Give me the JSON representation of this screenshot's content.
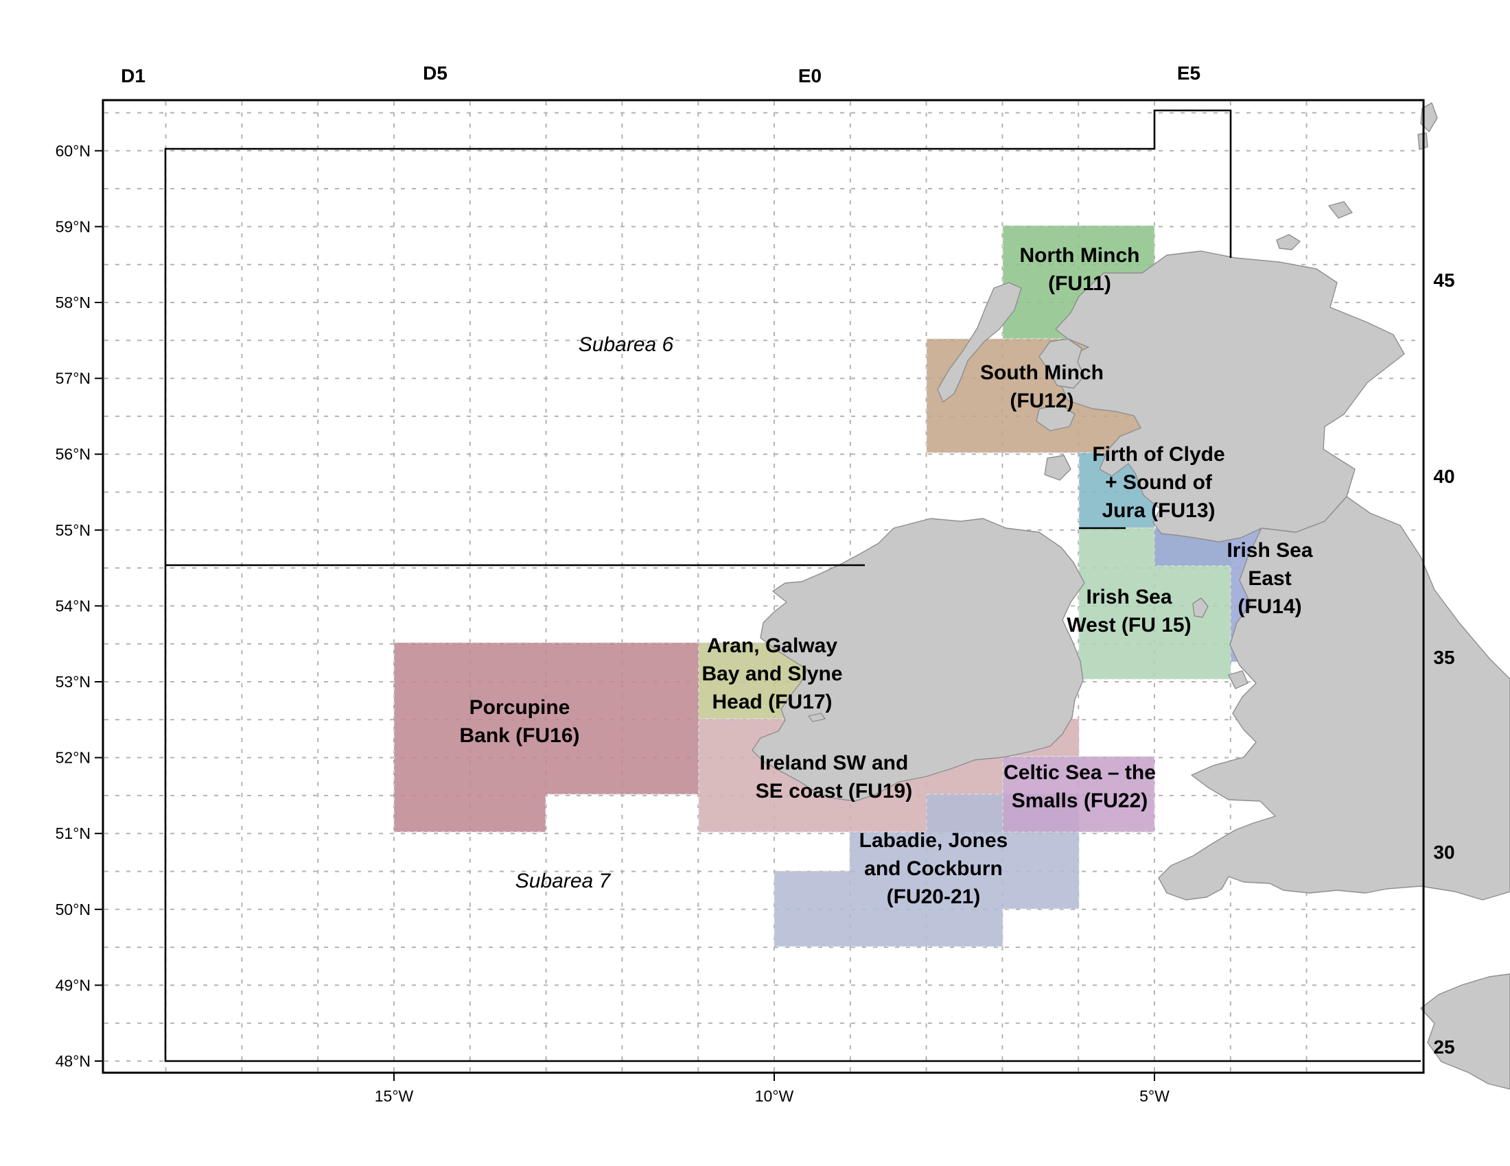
{
  "map": {
    "top_rect_labels": [
      "D1",
      "D5",
      "E0",
      "E5"
    ],
    "right_rect_labels": [
      "45",
      "40",
      "35",
      "30",
      "25"
    ],
    "lat_labels": [
      "60°N",
      "59°N",
      "58°N",
      "57°N",
      "56°N",
      "55°N",
      "54°N",
      "53°N",
      "52°N",
      "51°N",
      "50°N",
      "49°N",
      "48°N"
    ],
    "lon_labels": [
      "15°W",
      "10°W",
      "5°W"
    ],
    "subareas": [
      {
        "id": "subarea-6",
        "label": "Subarea 6"
      },
      {
        "id": "subarea-7",
        "label": "Subarea 7"
      }
    ],
    "functional_units": [
      {
        "id": "fu11",
        "lines": [
          "North Minch",
          "(FU11)"
        ],
        "color": "#8fc48c"
      },
      {
        "id": "fu12",
        "lines": [
          "South Minch",
          "(FU12)"
        ],
        "color": "#c4a88a"
      },
      {
        "id": "fu13",
        "lines": [
          "Firth of Clyde",
          "+ Sound of",
          "Jura (FU13)"
        ],
        "color": "#84b9c8"
      },
      {
        "id": "fu14",
        "lines": [
          "Irish Sea",
          "East",
          "(FU14)"
        ],
        "color": "#9ca8d6"
      },
      {
        "id": "fu15",
        "lines": [
          "Irish Sea",
          "West (FU 15)"
        ],
        "color": "#b1d6b8"
      },
      {
        "id": "fu16",
        "lines": [
          "Porcupine",
          "Bank (FU16)"
        ],
        "color": "#c18a93"
      },
      {
        "id": "fu17",
        "lines": [
          "Aran, Galway",
          "Bay and Slyne",
          "Head (FU17)"
        ],
        "color": "#c5c994"
      },
      {
        "id": "fu19",
        "lines": [
          "Ireland SW and",
          "SE coast (FU19)"
        ],
        "color": "#d4b2b6"
      },
      {
        "id": "fu2021",
        "lines": [
          "Labadie, Jones",
          "and Cockburn",
          "(FU20-21)"
        ],
        "color": "#b4bcd5"
      },
      {
        "id": "fu22",
        "lines": [
          "Celtic Sea – the",
          "Smalls (FU22)"
        ],
        "color": "#c8a4cc"
      }
    ],
    "land_color": "#c8c8c8"
  }
}
